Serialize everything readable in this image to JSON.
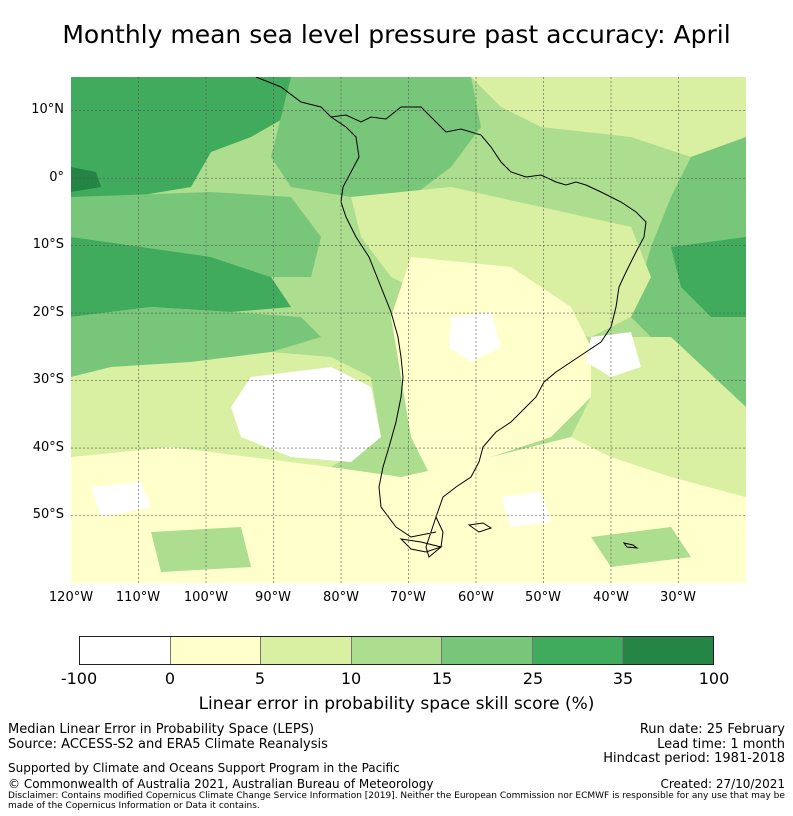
{
  "title": "Monthly mean sea level pressure past accuracy: April",
  "map": {
    "lat_range": [
      -60,
      15
    ],
    "lon_range": [
      -120,
      -20
    ],
    "lat_labels": [
      {
        "lat": 10,
        "text": "10°N"
      },
      {
        "lat": 0,
        "text": "0°"
      },
      {
        "lat": -10,
        "text": "10°S"
      },
      {
        "lat": -20,
        "text": "20°S"
      },
      {
        "lat": -30,
        "text": "30°S"
      },
      {
        "lat": -40,
        "text": "40°S"
      },
      {
        "lat": -50,
        "text": "50°S"
      }
    ],
    "lon_labels": [
      {
        "lon": -120,
        "text": "120°W"
      },
      {
        "lon": -110,
        "text": "110°W"
      },
      {
        "lon": -100,
        "text": "100°W"
      },
      {
        "lon": -90,
        "text": "90°W"
      },
      {
        "lon": -80,
        "text": "80°W"
      },
      {
        "lon": -70,
        "text": "70°W"
      },
      {
        "lon": -60,
        "text": "60°W"
      },
      {
        "lon": -50,
        "text": "50°W"
      },
      {
        "lon": -40,
        "text": "40°W"
      },
      {
        "lon": -30,
        "text": "30°W"
      }
    ]
  },
  "colorbar": {
    "colors": [
      "#ffffff",
      "#ffffcc",
      "#d9f0a3",
      "#addd8e",
      "#78c679",
      "#41ab5d",
      "#238443"
    ],
    "ticks": [
      "-100",
      "0",
      "5",
      "10",
      "15",
      "25",
      "35",
      "100"
    ],
    "label": "Linear error in probability space skill score (%)"
  },
  "footer": {
    "line1": "Median Linear Error in Probability Space (LEPS)",
    "line2": "Source: ACCESS-S2 and ERA5 Climate Reanalysis",
    "line3": "Supported by Climate and Oceans Support Program in the Pacific",
    "line4": "© Commonwealth of Australia 2021, Australian Bureau of Meteorology",
    "run_date": "Run date: 25 February",
    "lead_time": "Lead time: 1 month",
    "hindcast": "Hindcast period: 1981-2018",
    "created": "Created: 27/10/2021",
    "disclaimer": "Disclaimer: Contains modified Copernicus Climate Change Service Information [2019]. Neither the European Commission nor ECMWF is responsible for any use that may be made of the Copernicus Information or Data it contains."
  }
}
